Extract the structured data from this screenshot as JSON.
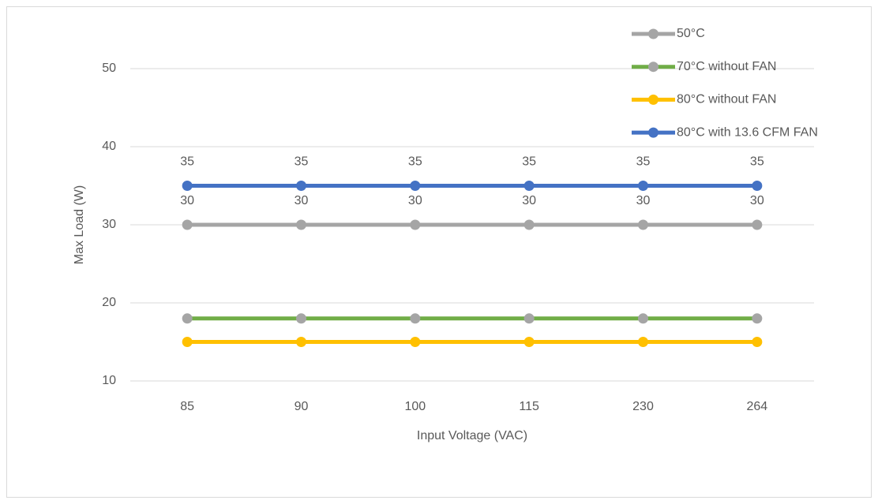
{
  "chart_data": {
    "type": "line",
    "x_label": "Input Voltage (VAC)",
    "y_label": "Max Load (W)",
    "categories": [
      "85",
      "90",
      "100",
      "115",
      "230",
      "264"
    ],
    "ylim": [
      10,
      50
    ],
    "yticks": [
      10,
      20,
      30,
      40,
      50
    ],
    "grid": true,
    "legend": "upper right",
    "series": [
      {
        "name": "50°C",
        "color": "#a5a5a5",
        "marker_color": "#a5a5a5",
        "data_labels": true,
        "values": [
          30,
          30,
          30,
          30,
          30,
          30
        ]
      },
      {
        "name": "70°C without FAN",
        "color": "#70ad47",
        "marker_color": "#a5a5a5",
        "data_labels": false,
        "values": [
          18,
          18,
          18,
          18,
          18,
          18
        ]
      },
      {
        "name": "80°C without FAN",
        "color": "#ffc000",
        "marker_color": "#ffc000",
        "data_labels": false,
        "values": [
          15,
          15,
          15,
          15,
          15,
          15
        ]
      },
      {
        "name": "80°C with 13.6 CFM FAN",
        "color": "#4472c4",
        "marker_color": "#4472c4",
        "data_labels": true,
        "values": [
          35,
          35,
          35,
          35,
          35,
          35
        ]
      }
    ]
  }
}
